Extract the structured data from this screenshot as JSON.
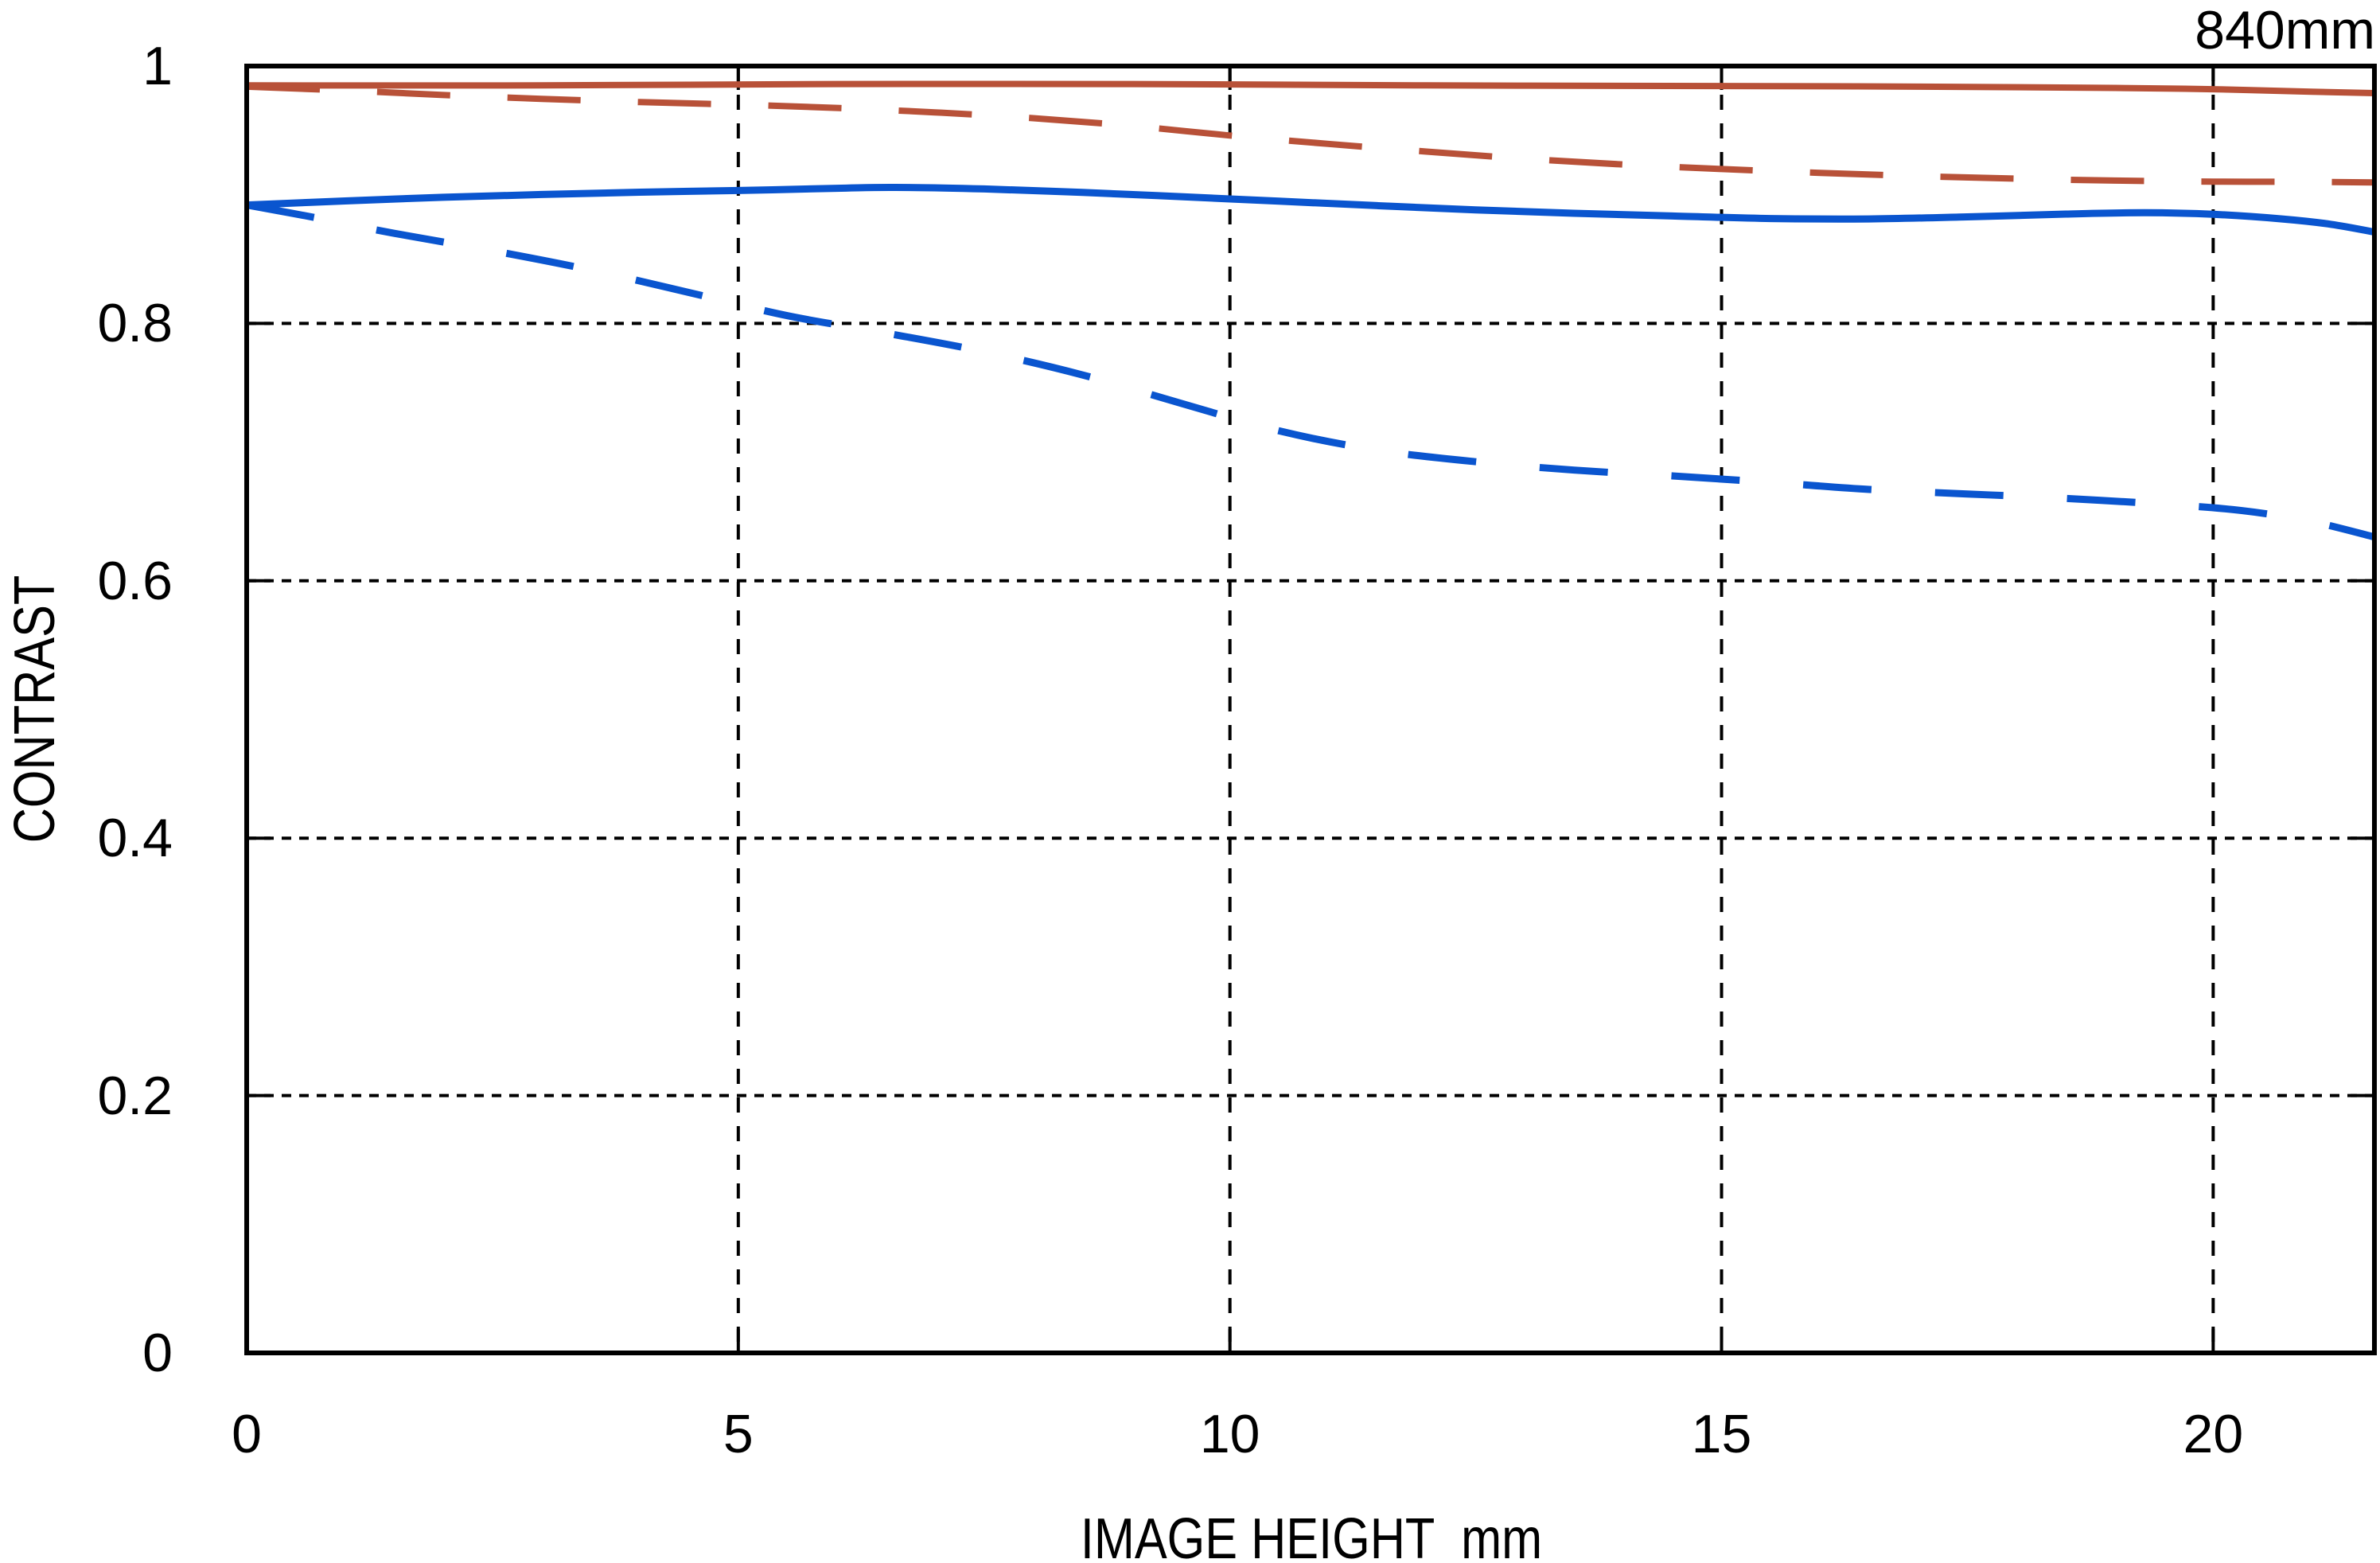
{
  "title": "840mm",
  "axes": {
    "x": {
      "label": "IMAGE HEIGHT  mm",
      "tick_labels": [
        "0",
        "5",
        "10",
        "15",
        "20"
      ],
      "tick_values": [
        0,
        5,
        10,
        15,
        20
      ]
    },
    "y": {
      "label": "CONTRAST",
      "tick_labels": [
        "0",
        "0.2",
        "0.4",
        "0.6",
        "0.8",
        "1"
      ],
      "tick_values": [
        0,
        0.2,
        0.4,
        0.6,
        0.8,
        1
      ]
    }
  },
  "colors": {
    "red": "#b85138",
    "blue": "#0a55cf",
    "axis": "#000000",
    "background": "#ffffff"
  },
  "chart_data": {
    "type": "line",
    "title": "840mm",
    "xlabel": "IMAGE HEIGHT  mm",
    "ylabel": "CONTRAST",
    "xlim": [
      0,
      21.64
    ],
    "ylim": [
      0,
      1
    ],
    "x_ticks": [
      0,
      5,
      10,
      15,
      20
    ],
    "y_ticks": [
      0,
      0.2,
      0.4,
      0.6,
      0.8,
      1
    ],
    "grid": {
      "vertical": "dashed",
      "horizontal": "dotted"
    },
    "legend": "none",
    "series": [
      {
        "id": "red-solid",
        "name": "red solid curve",
        "color": "red",
        "style": "solid",
        "points": [
          [
            0,
            0.985
          ],
          [
            3,
            0.985
          ],
          [
            6,
            0.986
          ],
          [
            9,
            0.986
          ],
          [
            12,
            0.985
          ],
          [
            15,
            0.9845
          ],
          [
            17,
            0.984
          ],
          [
            19,
            0.983
          ],
          [
            20,
            0.982
          ],
          [
            21,
            0.98
          ],
          [
            21.64,
            0.979
          ]
        ]
      },
      {
        "id": "red-dashed",
        "name": "red dashed curve",
        "color": "red",
        "style": "dashed",
        "points": [
          [
            0,
            0.984
          ],
          [
            1,
            0.981
          ],
          [
            2,
            0.9775
          ],
          [
            3,
            0.9745
          ],
          [
            4,
            0.972
          ],
          [
            5,
            0.97
          ],
          [
            6,
            0.9675
          ],
          [
            7,
            0.964
          ],
          [
            8,
            0.9595
          ],
          [
            9,
            0.9535
          ],
          [
            10,
            0.946
          ],
          [
            11,
            0.9395
          ],
          [
            12,
            0.9335
          ],
          [
            13,
            0.928
          ],
          [
            14,
            0.9235
          ],
          [
            15,
            0.92
          ],
          [
            16,
            0.917
          ],
          [
            17,
            0.9145
          ],
          [
            18,
            0.9125
          ],
          [
            19,
            0.911
          ],
          [
            20,
            0.9102
          ],
          [
            21,
            0.91
          ],
          [
            21.64,
            0.9095
          ]
        ]
      },
      {
        "id": "blue-solid",
        "name": "blue solid curve",
        "color": "blue",
        "style": "solid",
        "points": [
          [
            0,
            0.892
          ],
          [
            1,
            0.8952
          ],
          [
            2,
            0.898
          ],
          [
            3,
            0.9002
          ],
          [
            4,
            0.902
          ],
          [
            5,
            0.9033
          ],
          [
            6,
            0.905
          ],
          [
            6.6,
            0.9057
          ],
          [
            7.5,
            0.9045
          ],
          [
            8.5,
            0.9018
          ],
          [
            9.5,
            0.8985
          ],
          [
            10.5,
            0.895
          ],
          [
            11.5,
            0.8915
          ],
          [
            12.5,
            0.8882
          ],
          [
            13.5,
            0.8856
          ],
          [
            14.5,
            0.8835
          ],
          [
            15.5,
            0.8815
          ],
          [
            16.5,
            0.8812
          ],
          [
            17.5,
            0.8828
          ],
          [
            18.5,
            0.885
          ],
          [
            19.3,
            0.886
          ],
          [
            20,
            0.8848
          ],
          [
            20.7,
            0.8812
          ],
          [
            21.2,
            0.877
          ],
          [
            21.64,
            0.871
          ]
        ]
      },
      {
        "id": "blue-dashed",
        "name": "blue dashed curve",
        "color": "blue",
        "style": "dashed",
        "points": [
          [
            0,
            0.892
          ],
          [
            0.7,
            0.8822
          ],
          [
            1.5,
            0.87
          ],
          [
            2.5,
            0.8565
          ],
          [
            3.5,
            0.8415
          ],
          [
            4.5,
            0.824
          ],
          [
            5.5,
            0.806
          ],
          [
            6.5,
            0.7925
          ],
          [
            7.5,
            0.778
          ],
          [
            8.5,
            0.76
          ],
          [
            9.5,
            0.738
          ],
          [
            10.5,
            0.7165
          ],
          [
            11.5,
            0.7015
          ],
          [
            12.5,
            0.6925
          ],
          [
            13.5,
            0.686
          ],
          [
            14.5,
            0.6815
          ],
          [
            15.5,
            0.6765
          ],
          [
            16.5,
            0.671
          ],
          [
            17.5,
            0.6675
          ],
          [
            18.5,
            0.664
          ],
          [
            19.5,
            0.6595
          ],
          [
            20.3,
            0.6545
          ],
          [
            21,
            0.646
          ],
          [
            21.64,
            0.634
          ]
        ]
      }
    ]
  }
}
